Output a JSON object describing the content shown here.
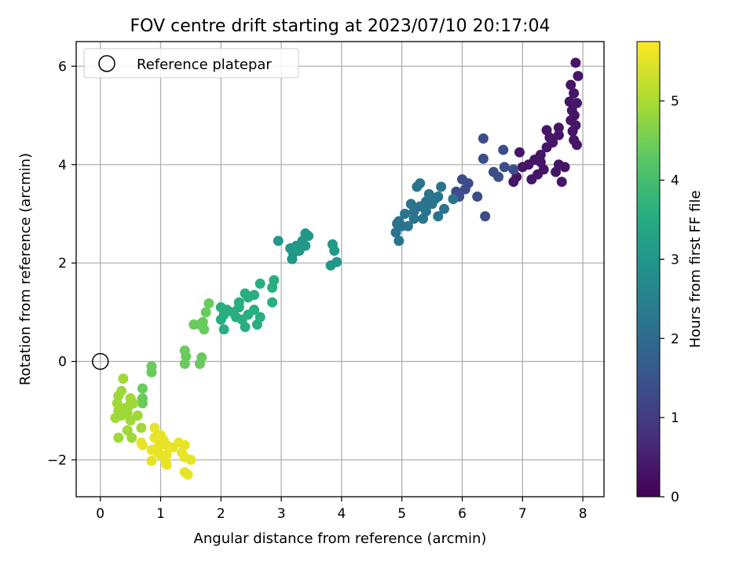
{
  "chart_data": {
    "type": "scatter",
    "title": "FOV centre drift starting at 2023/07/10 20:17:04",
    "xlabel": "Angular distance from reference (arcmin)",
    "ylabel": "Rotation from reference (arcmin)",
    "xlim": [
      -0.4,
      8.35
    ],
    "ylim": [
      -2.75,
      6.5
    ],
    "xticks": [
      0,
      1,
      2,
      3,
      4,
      5,
      6,
      7,
      8
    ],
    "xtick_labels": [
      "0",
      "1",
      "2",
      "3",
      "4",
      "5",
      "6",
      "7",
      "8"
    ],
    "yticks": [
      -2,
      0,
      2,
      4,
      6
    ],
    "ytick_labels": [
      "−2",
      "0",
      "2",
      "4",
      "6"
    ],
    "grid": true,
    "legend": {
      "placement": "top-left",
      "entries": [
        "Reference platepar"
      ]
    },
    "reference_point": {
      "x": 0,
      "y": 0,
      "name": "Reference platepar"
    },
    "colorbar": {
      "label": "Hours from first FF file",
      "colormap": "viridis",
      "range": [
        0,
        5.75
      ],
      "ticks": [
        0,
        1,
        2,
        3,
        4,
        5
      ],
      "tick_labels": [
        "0",
        "1",
        "2",
        "3",
        "4",
        "5"
      ]
    },
    "series": [
      {
        "points": [
          [
            7.88,
            6.07
          ],
          [
            7.92,
            5.8
          ],
          [
            7.8,
            5.62
          ],
          [
            7.85,
            5.45
          ],
          [
            7.78,
            5.28
          ],
          [
            7.9,
            5.25
          ],
          [
            7.82,
            5.1
          ],
          [
            7.86,
            5.0
          ],
          [
            7.8,
            4.9
          ],
          [
            7.88,
            4.8
          ],
          [
            7.83,
            4.68
          ],
          [
            7.85,
            4.5
          ],
          [
            7.9,
            4.4
          ],
          [
            7.6,
            4.6
          ],
          [
            7.5,
            4.45
          ],
          [
            7.4,
            4.35
          ],
          [
            7.3,
            4.2
          ],
          [
            7.2,
            4.1
          ],
          [
            7.1,
            4.0
          ],
          [
            7.0,
            3.95
          ],
          [
            6.95,
            4.25
          ],
          [
            7.6,
            4.0
          ],
          [
            7.7,
            3.95
          ],
          [
            7.55,
            3.85
          ],
          [
            7.35,
            3.9
          ],
          [
            7.25,
            3.8
          ],
          [
            7.15,
            3.7
          ],
          [
            6.9,
            3.75
          ],
          [
            6.85,
            3.65
          ],
          [
            7.65,
            3.65
          ],
          [
            7.4,
            4.7
          ],
          [
            7.3,
            4.05
          ],
          [
            7.6,
            4.75
          ],
          [
            7.45,
            4.55
          ]
        ],
        "hours": 0.35
      },
      {
        "points": [
          [
            6.35,
            4.53
          ],
          [
            6.35,
            4.12
          ],
          [
            6.68,
            4.3
          ],
          [
            6.7,
            3.95
          ],
          [
            6.85,
            3.9
          ],
          [
            6.6,
            3.75
          ],
          [
            6.52,
            3.85
          ],
          [
            6.1,
            3.62
          ],
          [
            6.0,
            3.7
          ],
          [
            6.25,
            3.35
          ],
          [
            6.38,
            2.95
          ],
          [
            6.05,
            3.5
          ],
          [
            5.9,
            3.45
          ],
          [
            5.95,
            3.35
          ]
        ],
        "hours": 1.35
      },
      {
        "points": [
          [
            5.3,
            3.62
          ],
          [
            5.25,
            3.55
          ],
          [
            5.45,
            3.4
          ],
          [
            5.55,
            3.3
          ],
          [
            5.65,
            3.55
          ],
          [
            5.4,
            3.25
          ],
          [
            5.3,
            3.15
          ],
          [
            5.15,
            3.2
          ],
          [
            5.05,
            3.0
          ],
          [
            4.95,
            2.85
          ],
          [
            5.2,
            2.9
          ],
          [
            5.1,
            2.75
          ],
          [
            4.9,
            2.62
          ],
          [
            4.95,
            2.45
          ],
          [
            5.35,
            2.9
          ],
          [
            5.6,
            2.95
          ],
          [
            5.7,
            3.1
          ],
          [
            5.85,
            3.3
          ],
          [
            5.5,
            3.2
          ],
          [
            5.2,
            3.05
          ],
          [
            5.0,
            2.75
          ],
          [
            4.92,
            2.8
          ],
          [
            5.4,
            3.05
          ],
          [
            5.6,
            3.35
          ]
        ],
        "hours": 2.2
      },
      {
        "points": [
          [
            3.85,
            2.38
          ],
          [
            3.88,
            2.25
          ],
          [
            3.92,
            2.02
          ],
          [
            3.82,
            1.95
          ],
          [
            3.4,
            2.6
          ],
          [
            3.45,
            2.55
          ],
          [
            3.35,
            2.45
          ],
          [
            3.25,
            2.35
          ],
          [
            3.4,
            2.35
          ],
          [
            3.2,
            2.2
          ],
          [
            3.15,
            2.3
          ],
          [
            3.18,
            2.08
          ],
          [
            2.95,
            2.45
          ],
          [
            3.3,
            2.25
          ]
        ],
        "hours": 3.05
      },
      {
        "points": [
          [
            2.88,
            1.65
          ],
          [
            2.85,
            1.5
          ],
          [
            2.65,
            1.58
          ],
          [
            2.55,
            1.35
          ],
          [
            2.45,
            1.3
          ],
          [
            2.4,
            1.38
          ],
          [
            2.55,
            1.05
          ],
          [
            2.45,
            0.95
          ],
          [
            2.35,
            0.85
          ],
          [
            2.4,
            0.7
          ],
          [
            2.2,
            1.0
          ],
          [
            2.3,
            1.1
          ],
          [
            2.25,
            0.9
          ],
          [
            2.1,
            1.05
          ],
          [
            2.05,
            0.95
          ],
          [
            2.0,
            1.1
          ],
          [
            2.0,
            0.85
          ],
          [
            2.05,
            0.65
          ],
          [
            2.6,
            0.75
          ],
          [
            2.85,
            1.2
          ],
          [
            2.65,
            0.9
          ],
          [
            2.3,
            1.2
          ]
        ],
        "hours": 3.6
      },
      {
        "points": [
          [
            1.8,
            1.18
          ],
          [
            1.75,
            1.0
          ],
          [
            1.7,
            0.8
          ],
          [
            1.72,
            0.65
          ],
          [
            1.65,
            0.75
          ],
          [
            1.55,
            0.75
          ],
          [
            1.4,
            0.22
          ],
          [
            1.42,
            0.1
          ],
          [
            1.4,
            -0.05
          ],
          [
            1.68,
            0.08
          ],
          [
            1.65,
            -0.05
          ],
          [
            0.85,
            -0.1
          ],
          [
            0.85,
            -0.22
          ],
          [
            0.7,
            -0.55
          ],
          [
            0.7,
            -0.75
          ],
          [
            0.7,
            -0.85
          ]
        ],
        "hours": 4.4
      },
      {
        "points": [
          [
            0.38,
            -0.35
          ],
          [
            0.35,
            -0.6
          ],
          [
            0.3,
            -0.7
          ],
          [
            0.28,
            -0.85
          ],
          [
            0.4,
            -0.95
          ],
          [
            0.5,
            -0.75
          ],
          [
            0.55,
            -0.85
          ],
          [
            0.3,
            -1.0
          ],
          [
            0.45,
            -1.05
          ],
          [
            0.5,
            -1.2
          ],
          [
            0.45,
            -1.4
          ],
          [
            0.35,
            -1.1
          ],
          [
            0.25,
            -1.15
          ],
          [
            0.52,
            -1.55
          ],
          [
            0.3,
            -1.55
          ],
          [
            0.68,
            -1.35
          ],
          [
            0.62,
            -1.1
          ],
          [
            0.48,
            -0.9
          ]
        ],
        "hours": 4.9
      },
      {
        "points": [
          [
            0.9,
            -1.35
          ],
          [
            1.0,
            -1.5
          ],
          [
            1.05,
            -1.6
          ],
          [
            1.1,
            -1.7
          ],
          [
            0.95,
            -1.75
          ],
          [
            0.85,
            -1.8
          ],
          [
            0.7,
            -1.7
          ],
          [
            0.68,
            -1.65
          ],
          [
            0.95,
            -1.85
          ],
          [
            1.0,
            -1.9
          ],
          [
            0.85,
            -2.02
          ],
          [
            1.08,
            -2.05
          ],
          [
            1.1,
            -1.9
          ],
          [
            1.3,
            -1.65
          ],
          [
            1.4,
            -1.7
          ],
          [
            1.35,
            -1.85
          ],
          [
            1.4,
            -1.95
          ],
          [
            1.5,
            -2.0
          ],
          [
            1.4,
            -2.25
          ],
          [
            1.45,
            -2.3
          ],
          [
            1.1,
            -2.1
          ],
          [
            1.2,
            -1.75
          ],
          [
            1.0,
            -1.7
          ],
          [
            0.9,
            -1.55
          ]
        ],
        "hours": 5.55
      }
    ]
  }
}
